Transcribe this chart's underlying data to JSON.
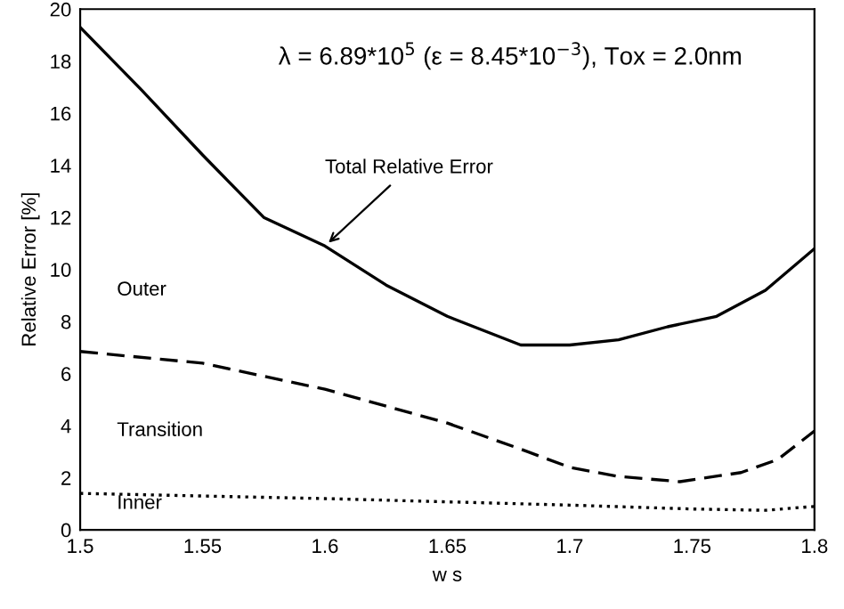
{
  "chart_data": {
    "type": "line",
    "xlabel": "w s",
    "ylabel": "Relative Error [%]",
    "xlim": [
      1.5,
      1.8
    ],
    "xticks": [
      1.5,
      1.55,
      1.6,
      1.65,
      1.7,
      1.75,
      1.8
    ],
    "ylim": [
      0,
      20
    ],
    "yticks": [
      0,
      2,
      4,
      6,
      8,
      10,
      12,
      14,
      16,
      18,
      20
    ],
    "grid": false,
    "legend": false,
    "series": [
      {
        "color": "#000000",
        "line_style": "solid",
        "x": [
          1.5,
          1.525,
          1.55,
          1.575,
          1.6,
          1.625,
          1.65,
          1.68,
          1.7,
          1.72,
          1.74,
          1.76,
          1.78,
          1.8
        ],
        "values": [
          19.3,
          16.9,
          14.4,
          12.0,
          10.9,
          9.4,
          8.2,
          7.1,
          7.1,
          7.3,
          7.8,
          8.2,
          9.2,
          10.8
        ]
      },
      {
        "color": "#000000",
        "line_style": "dashed",
        "x": [
          1.5,
          1.55,
          1.6,
          1.65,
          1.68,
          1.7,
          1.72,
          1.745,
          1.77,
          1.785,
          1.8
        ],
        "values": [
          6.85,
          6.4,
          5.4,
          4.1,
          3.1,
          2.4,
          2.05,
          1.85,
          2.2,
          2.7,
          3.8
        ]
      },
      {
        "color": "#000000",
        "line_style": "dotted",
        "x": [
          1.5,
          1.6,
          1.7,
          1.75,
          1.78,
          1.8
        ],
        "values": [
          1.4,
          1.2,
          0.95,
          0.8,
          0.75,
          0.9
        ]
      }
    ],
    "annotations": [
      "λ = 6.89*10$^{5}$ (ε = 8.45*10$^{−3}$), Tox = 2.0nm",
      {
        "text": "Total Relative Error",
        "x": 1.6,
        "y": 10.9
      },
      "Outer",
      "Transition",
      "Inner"
    ]
  }
}
